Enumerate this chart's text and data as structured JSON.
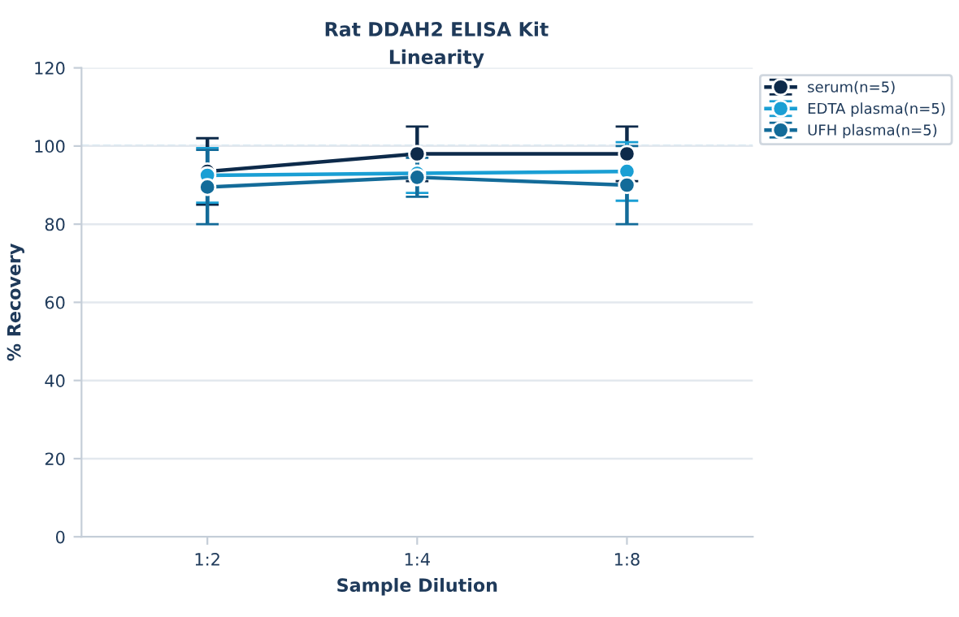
{
  "chart_data": {
    "type": "line",
    "title": "Rat DDAH2 ELISA Kit",
    "subtitle": "Linearity",
    "xlabel": "Sample Dilution",
    "ylabel": "% Recovery",
    "categories": [
      "1:2",
      "1:4",
      "1:8"
    ],
    "series": [
      {
        "name": "serum(n=5)",
        "color": "#0d2a4a",
        "values": [
          93.5,
          98,
          98
        ],
        "errors": [
          8.5,
          7,
          7
        ]
      },
      {
        "name": "EDTA plasma(n=5)",
        "color": "#1a9fd4",
        "values": [
          92.5,
          93,
          93.5
        ],
        "errors": [
          7,
          5,
          7.5
        ]
      },
      {
        "name": "UFH plasma(n=5)",
        "color": "#136b99",
        "values": [
          89.5,
          92,
          90
        ],
        "errors": [
          9.5,
          5,
          10
        ]
      }
    ],
    "ylim": [
      0,
      120
    ],
    "yticks": [
      0,
      20,
      40,
      60,
      80,
      100,
      120
    ],
    "grid": "y",
    "legend": "top right",
    "marker": "circle",
    "line_style": "solid",
    "ref_lines": [
      {
        "axis": "y",
        "value": 100,
        "color": "#8ecde6",
        "line_style": "dashed"
      }
    ]
  }
}
